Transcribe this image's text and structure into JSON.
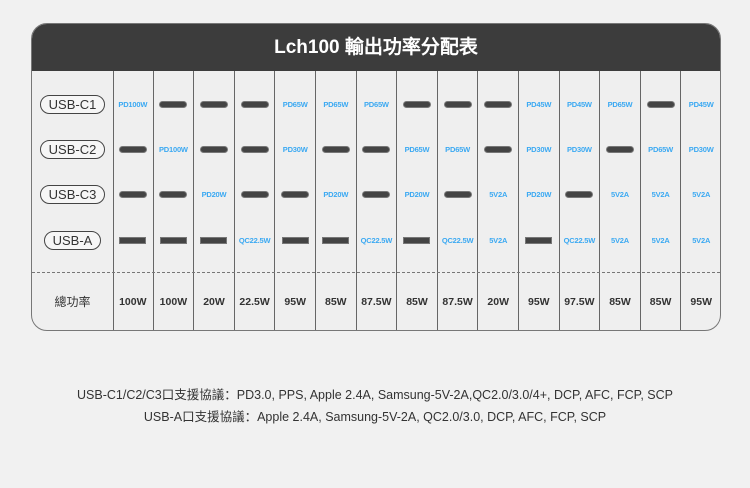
{
  "title": "Lch100 輸出功率分配表",
  "rows": [
    {
      "label": "USB-C1",
      "cells": [
        "PD100W",
        "usb-c",
        "usb-c",
        "usb-c",
        "PD65W",
        "PD65W",
        "PD65W",
        "usb-c",
        "usb-c",
        "usb-c",
        "PD45W",
        "PD45W",
        "PD65W",
        "usb-c",
        "PD45W"
      ]
    },
    {
      "label": "USB-C2",
      "cells": [
        "usb-c",
        "PD100W",
        "usb-c",
        "usb-c",
        "PD30W",
        "usb-c",
        "usb-c",
        "PD65W",
        "PD65W",
        "usb-c",
        "PD30W",
        "PD30W",
        "usb-c",
        "PD65W",
        "PD30W"
      ]
    },
    {
      "label": "USB-C3",
      "cells": [
        "usb-c",
        "usb-c",
        "PD20W",
        "usb-c",
        "usb-c",
        "PD20W",
        "usb-c",
        "PD20W",
        "usb-c",
        "5V2A",
        "PD20W",
        "usb-c",
        "5V2A",
        "5V2A",
        "5V2A"
      ]
    },
    {
      "label": "USB-A",
      "cells": [
        "usb-a",
        "usb-a",
        "usb-a",
        "QC22.5W",
        "usb-a",
        "usb-a",
        "QC22.5W",
        "usb-a",
        "QC22.5W",
        "5V2A",
        "usb-a",
        "QC22.5W",
        "5V2A",
        "5V2A",
        "5V2A"
      ]
    }
  ],
  "total": {
    "label": "總功率",
    "values": [
      "100W",
      "100W",
      "20W",
      "22.5W",
      "95W",
      "85W",
      "87.5W",
      "85W",
      "87.5W",
      "20W",
      "95W",
      "97.5W",
      "85W",
      "85W",
      "95W"
    ]
  },
  "notes": [
    "USB-C1/C2/C3口支援協議：PD3.0, PPS, Apple 2.4A, Samsung-5V-2A,QC2.0/3.0/4+, DCP, AFC, FCP, SCP",
    "USB-A口支援協議：Apple 2.4A, Samsung-5V-2A, QC2.0/3.0, DCP, AFC, FCP, SCP"
  ],
  "colors": {
    "header": "#3c3c3c",
    "accent": "#3ba9f2"
  }
}
